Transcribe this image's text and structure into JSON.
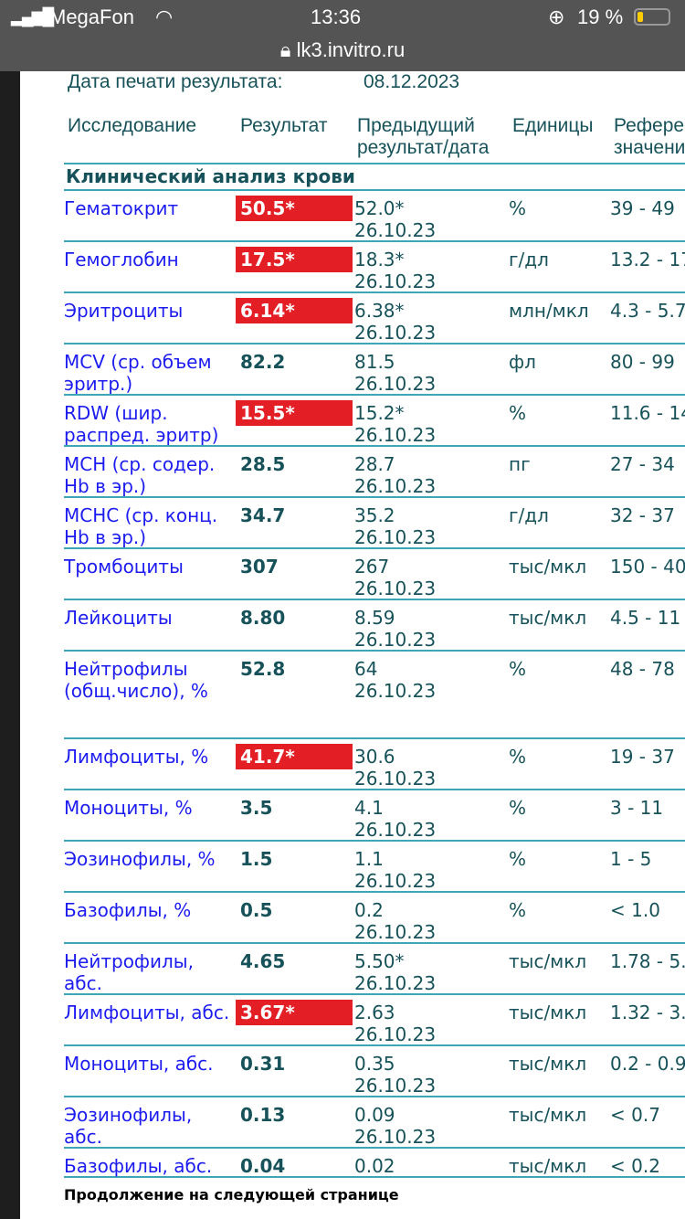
{
  "status_bar": {
    "carrier": "MegaFon",
    "time": "13:36",
    "battery": "19 %",
    "url": "lk3.invitro.ru",
    "battery_level": 0.19,
    "battery_color": "#ffcc00"
  },
  "print_date": {
    "label": "Дата печати результата:",
    "value": "08.12.2023"
  },
  "columns": {
    "test": "Исследование",
    "result": "Результат",
    "prev1": "Предыдущий",
    "prev2": "результат/дата",
    "units": "Единицы",
    "ref1": "Референ",
    "ref2": "значени"
  },
  "section": "Клинический анализ крови",
  "colors": {
    "abnormal": "#e31e24",
    "name": "#1c1cf0",
    "text": "#17525a",
    "rule": "#3ba7b7"
  },
  "rows": [
    {
      "name": "Гематокрит",
      "result": "50.5*",
      "abnormal": true,
      "prev": "52.0*",
      "date": "26.10.23",
      "units": "%",
      "ref": "39 - 49"
    },
    {
      "name": "Гемоглобин",
      "result": "17.5*",
      "abnormal": true,
      "prev": "18.3*",
      "date": "26.10.23",
      "units": "г/дл",
      "ref": "13.2 - 17"
    },
    {
      "name": "Эритроциты",
      "result": "6.14*",
      "abnormal": true,
      "prev": "6.38*",
      "date": "26.10.23",
      "units": "млн/мкл",
      "ref": "4.3 - 5.7"
    },
    {
      "name": "MCV (ср. объем\nэритр.)",
      "result": "82.2",
      "abnormal": false,
      "prev": "81.5",
      "date": "26.10.23",
      "units": "фл",
      "ref": "80 - 99"
    },
    {
      "name": "RDW (шир.\nраспред. эритр)",
      "result": "15.5*",
      "abnormal": true,
      "prev": "15.2*",
      "date": "26.10.23",
      "units": "%",
      "ref": "11.6 - 14"
    },
    {
      "name": "MCH (ср. содер.\nHb в эр.)",
      "result": "28.5",
      "abnormal": false,
      "prev": "28.7",
      "date": "26.10.23",
      "units": "пг",
      "ref": "27 - 34"
    },
    {
      "name": "MCHC (ср. конц.\nHb в эр.)",
      "result": "34.7",
      "abnormal": false,
      "prev": "35.2",
      "date": "26.10.23",
      "units": "г/дл",
      "ref": "32 - 37"
    },
    {
      "name": "Тромбоциты",
      "result": "307",
      "abnormal": false,
      "prev": "267",
      "date": "26.10.23",
      "units": "тыс/мкл",
      "ref": "150 - 40"
    },
    {
      "name": "Лейкоциты",
      "result": "8.80",
      "abnormal": false,
      "prev": "8.59",
      "date": "26.10.23",
      "units": "тыс/мкл",
      "ref": "4.5 - 11"
    },
    {
      "name": "Нейтрофилы\n(общ.число), %",
      "result": "52.8",
      "abnormal": false,
      "prev": "64",
      "date": "26.10.23",
      "units": "%",
      "ref": "48 - 78",
      "tall": true
    },
    {
      "name": "Лимфоциты, %",
      "result": "41.7*",
      "abnormal": true,
      "prev": "30.6",
      "date": "26.10.23",
      "units": "%",
      "ref": "19 - 37"
    },
    {
      "name": "Моноциты, %",
      "result": "3.5",
      "abnormal": false,
      "prev": "4.1",
      "date": "26.10.23",
      "units": "%",
      "ref": "3 - 11"
    },
    {
      "name": "Эозинофилы, %",
      "result": "1.5",
      "abnormal": false,
      "prev": "1.1",
      "date": "26.10.23",
      "units": "%",
      "ref": "1 - 5"
    },
    {
      "name": "Базофилы, %",
      "result": "0.5",
      "abnormal": false,
      "prev": "0.2",
      "date": "26.10.23",
      "units": "%",
      "ref": "< 1.0"
    },
    {
      "name": "Нейтрофилы,\nабс.",
      "result": "4.65",
      "abnormal": false,
      "prev": "5.50*",
      "date": "26.10.23",
      "units": "тыс/мкл",
      "ref": "1.78 - 5."
    },
    {
      "name": "Лимфоциты, абс.",
      "result": "3.67*",
      "abnormal": true,
      "prev": "2.63",
      "date": "26.10.23",
      "units": "тыс/мкл",
      "ref": "1.32 - 3."
    },
    {
      "name": "Моноциты, абс.",
      "result": "0.31",
      "abnormal": false,
      "prev": "0.35",
      "date": "26.10.23",
      "units": "тыс/мкл",
      "ref": "0.2 - 0.9"
    },
    {
      "name": "Эозинофилы,\nабс.",
      "result": "0.13",
      "abnormal": false,
      "prev": "0.09",
      "date": "26.10.23",
      "units": "тыс/мкл",
      "ref": "< 0.7"
    },
    {
      "name": "Базофилы, абс.",
      "result": "0.04",
      "abnormal": false,
      "prev": "0.02",
      "date": "",
      "units": "тыс/мкл",
      "ref": "< 0.2",
      "last": true
    }
  ],
  "footer": "Продолжение на следующей странице"
}
